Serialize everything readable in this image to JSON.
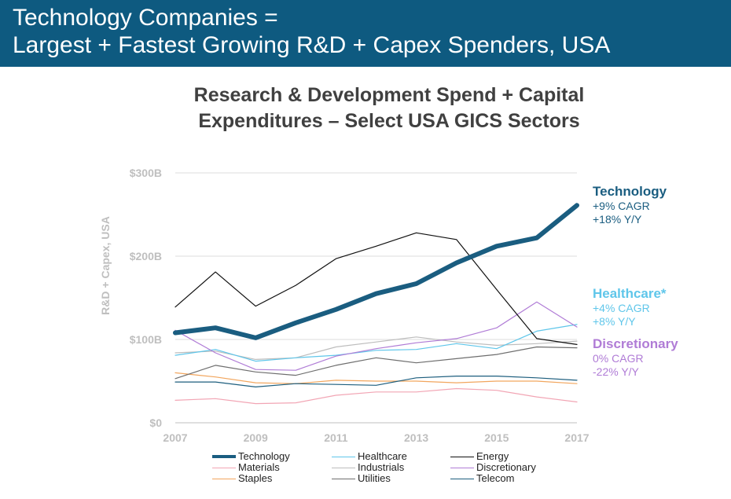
{
  "header": {
    "line1": "Technology Companies =",
    "line2": "Largest + Fastest Growing R&D + Capex Spenders, USA"
  },
  "chart_title": {
    "line1": "Research & Development Spend + Capital",
    "line2": "Expenditures – Select USA GICS Sectors"
  },
  "colors": {
    "header_bg": "#0e5a80",
    "technology": "#1a5d80",
    "healthcare": "#5fc6ea",
    "energy": "#111111",
    "materials": "#f2a5b4",
    "industrials": "#bdbdbd",
    "discretionary": "#b07cd6",
    "staples": "#f2a65e",
    "utilities": "#6e6e6e",
    "telecom": "#1d5e7e",
    "axis_text": "#bfbfbf"
  },
  "annotations": [
    {
      "name": "Technology",
      "cagr": "+9% CAGR",
      "yy": "+18% Y/Y",
      "color": "#1a5d80"
    },
    {
      "name": "Healthcare*",
      "cagr": "+4% CAGR",
      "yy": "+8% Y/Y",
      "color": "#5fc6ea"
    },
    {
      "name": "Discretionary",
      "cagr": "0% CAGR",
      "yy": "-22% Y/Y",
      "color": "#b07cd6"
    }
  ],
  "legend": [
    {
      "label": "Technology",
      "color": "#1a5d80",
      "width": 4
    },
    {
      "label": "Healthcare",
      "color": "#5fc6ea",
      "width": 1
    },
    {
      "label": "Energy",
      "color": "#111111",
      "width": 1
    },
    {
      "label": "Materials",
      "color": "#f2a5b4",
      "width": 1
    },
    {
      "label": "Industrials",
      "color": "#bdbdbd",
      "width": 1
    },
    {
      "label": "Discretionary",
      "color": "#b07cd6",
      "width": 1
    },
    {
      "label": "Staples",
      "color": "#f2a65e",
      "width": 1
    },
    {
      "label": "Utilities",
      "color": "#6e6e6e",
      "width": 1
    },
    {
      "label": "Telecom",
      "color": "#1d5e7e",
      "width": 1
    }
  ],
  "chart_data": {
    "type": "line",
    "title": "Research & Development Spend + Capital Expenditures – Select USA GICS Sectors",
    "xlabel": "",
    "ylabel": "R&D + Capex, USA",
    "x": [
      2007,
      2008,
      2009,
      2010,
      2011,
      2012,
      2013,
      2014,
      2015,
      2016,
      2017
    ],
    "x_ticks": [
      "2007",
      "2009",
      "2011",
      "2013",
      "2015",
      "2017"
    ],
    "y_ticks": [
      "$0",
      "$100B",
      "$200B",
      "$300B"
    ],
    "ylim": [
      0,
      300
    ],
    "y_units": "$B",
    "grid": "horizontal",
    "series": [
      {
        "name": "Materials",
        "values": [
          27,
          29,
          23,
          24,
          33,
          37,
          37,
          41,
          39,
          31,
          25
        ]
      },
      {
        "name": "Staples",
        "values": [
          60,
          55,
          48,
          47,
          51,
          50,
          50,
          48,
          50,
          50,
          47
        ]
      },
      {
        "name": "Telecom",
        "values": [
          49,
          49,
          43,
          47,
          46,
          45,
          54,
          56,
          56,
          54,
          51
        ]
      },
      {
        "name": "Utilities",
        "values": [
          53,
          69,
          61,
          57,
          69,
          78,
          72,
          77,
          82,
          91,
          90
        ]
      },
      {
        "name": "Industrials",
        "values": [
          84,
          86,
          76,
          78,
          91,
          97,
          103,
          97,
          93,
          95,
          98
        ]
      },
      {
        "name": "Healthcare",
        "values": [
          81,
          88,
          74,
          78,
          81,
          87,
          88,
          95,
          89,
          110,
          118
        ]
      },
      {
        "name": "Discretionary",
        "values": [
          111,
          84,
          64,
          63,
          80,
          89,
          96,
          101,
          114,
          145,
          115
        ]
      },
      {
        "name": "Energy",
        "values": [
          139,
          181,
          140,
          165,
          197,
          212,
          228,
          220,
          160,
          101,
          94
        ]
      },
      {
        "name": "Technology",
        "values": [
          108,
          114,
          102,
          120,
          136,
          155,
          167,
          192,
          212,
          222,
          261
        ]
      }
    ]
  }
}
